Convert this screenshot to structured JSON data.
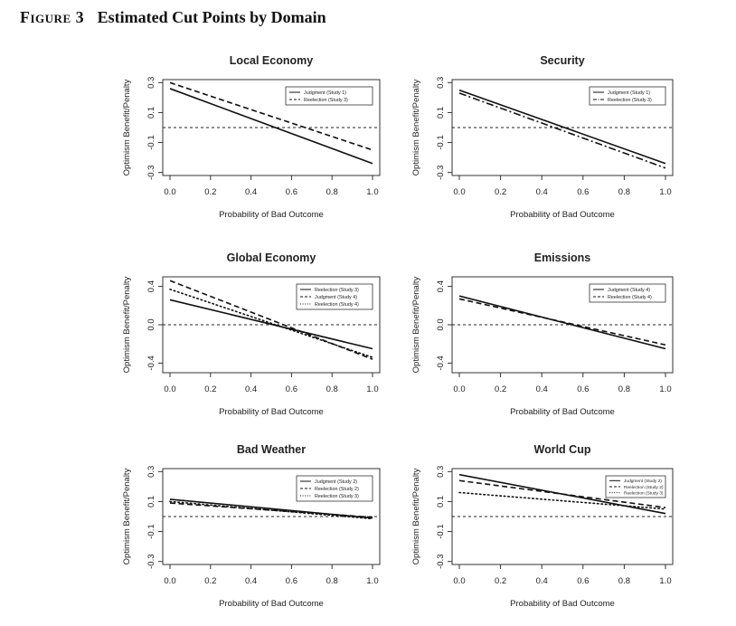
{
  "figure": {
    "label": "Figure 3",
    "caption": "Estimated Cut Points by Domain"
  },
  "chart_data": [
    {
      "type": "line",
      "title": "Local Economy",
      "xlabel": "Probability of Bad Outcome",
      "ylabel": "Optimism Benefit/Penalty",
      "xlim": [
        0,
        1
      ],
      "ylim": [
        -0.32,
        0.32
      ],
      "xticks": [
        0.0,
        0.2,
        0.4,
        0.6,
        0.8,
        1.0
      ],
      "yticks": [
        -0.3,
        -0.1,
        0.1,
        0.3
      ],
      "xtick_labels": [
        "0.0",
        "0.2",
        "0.4",
        "0.6",
        "0.8",
        "1.0"
      ],
      "ytick_labels": [
        "-0.3",
        "-0.1",
        "0.1",
        "0.3"
      ],
      "reference_y": 0,
      "series": [
        {
          "name": "Judgment (Study 1)",
          "style": "solid",
          "x": [
            0,
            1
          ],
          "y": [
            0.26,
            -0.24
          ]
        },
        {
          "name": "Reelection (Study 3)",
          "style": "dashed",
          "x": [
            0,
            1
          ],
          "y": [
            0.3,
            -0.15
          ]
        }
      ]
    },
    {
      "type": "line",
      "title": "Security",
      "xlabel": "Probability of Bad Outcome",
      "ylabel": "Optimism Benefit/Penalty",
      "xlim": [
        0,
        1
      ],
      "ylim": [
        -0.32,
        0.32
      ],
      "xticks": [
        0.0,
        0.2,
        0.4,
        0.6,
        0.8,
        1.0
      ],
      "yticks": [
        -0.3,
        -0.1,
        0.1,
        0.3
      ],
      "xtick_labels": [
        "0.0",
        "0.2",
        "0.4",
        "0.6",
        "0.8",
        "1.0"
      ],
      "ytick_labels": [
        "-0.3",
        "-0.1",
        "0.1",
        "0.3"
      ],
      "reference_y": 0,
      "series": [
        {
          "name": "Judgment (Study 1)",
          "style": "solid",
          "x": [
            0,
            1
          ],
          "y": [
            0.25,
            -0.24
          ]
        },
        {
          "name": "Reelection (Study 3)",
          "style": "dashdot",
          "x": [
            0,
            1
          ],
          "y": [
            0.23,
            -0.27
          ]
        }
      ]
    },
    {
      "type": "line",
      "title": "Global Economy",
      "xlabel": "Probability of Bad Outcome",
      "ylabel": "Optimism Benefit/Penalty",
      "xlim": [
        0,
        1
      ],
      "ylim": [
        -0.5,
        0.5
      ],
      "xticks": [
        0.0,
        0.2,
        0.4,
        0.6,
        0.8,
        1.0
      ],
      "yticks": [
        -0.4,
        0.0,
        0.4
      ],
      "xtick_labels": [
        "0.0",
        "0.2",
        "0.4",
        "0.6",
        "0.8",
        "1.0"
      ],
      "ytick_labels": [
        "-0.4",
        "0.0",
        "0.4"
      ],
      "reference_y": 0,
      "series": [
        {
          "name": "Reelection (Study 3)",
          "style": "solid",
          "x": [
            0,
            1
          ],
          "y": [
            0.26,
            -0.25
          ]
        },
        {
          "name": "Judgment (Study 4)",
          "style": "dashed",
          "x": [
            0,
            1
          ],
          "y": [
            0.46,
            -0.36
          ]
        },
        {
          "name": "Reelection (Study 4)",
          "style": "dotted",
          "x": [
            0,
            1
          ],
          "y": [
            0.37,
            -0.34
          ]
        }
      ]
    },
    {
      "type": "line",
      "title": "Emissions",
      "xlabel": "Probability of Bad Outcome",
      "ylabel": "Optimism Benefit/Penalty",
      "xlim": [
        0,
        1
      ],
      "ylim": [
        -0.5,
        0.5
      ],
      "xticks": [
        0.0,
        0.2,
        0.4,
        0.6,
        0.8,
        1.0
      ],
      "yticks": [
        -0.4,
        0.0,
        0.4
      ],
      "xtick_labels": [
        "0.0",
        "0.2",
        "0.4",
        "0.6",
        "0.8",
        "1.0"
      ],
      "ytick_labels": [
        "-0.4",
        "0.0",
        "0.4"
      ],
      "reference_y": 0,
      "series": [
        {
          "name": "Judgment (Study 4)",
          "style": "solid",
          "x": [
            0,
            1
          ],
          "y": [
            0.3,
            -0.25
          ]
        },
        {
          "name": "Reelection (Study 4)",
          "style": "dashed",
          "x": [
            0,
            1
          ],
          "y": [
            0.27,
            -0.21
          ]
        }
      ]
    },
    {
      "type": "line",
      "title": "Bad Weather",
      "xlabel": "Probability of Bad Outcome",
      "ylabel": "Optimism Benefit/Penalty",
      "xlim": [
        0,
        1
      ],
      "ylim": [
        -0.32,
        0.32
      ],
      "xticks": [
        0.0,
        0.2,
        0.4,
        0.6,
        0.8,
        1.0
      ],
      "yticks": [
        -0.3,
        -0.1,
        0.1,
        0.3
      ],
      "xtick_labels": [
        "0.0",
        "0.2",
        "0.4",
        "0.6",
        "0.8",
        "1.0"
      ],
      "ytick_labels": [
        "-0.3",
        "-0.1",
        "0.1",
        "0.3"
      ],
      "reference_y": 0,
      "series": [
        {
          "name": "Judgment (Study 2)",
          "style": "solid",
          "x": [
            0,
            1
          ],
          "y": [
            0.115,
            -0.01
          ]
        },
        {
          "name": "Reelection (Study 2)",
          "style": "dashed",
          "x": [
            0,
            1
          ],
          "y": [
            0.09,
            -0.005
          ]
        },
        {
          "name": "Reelection (Study 3)",
          "style": "dotted",
          "x": [
            0,
            1
          ],
          "y": [
            0.1,
            -0.015
          ]
        }
      ]
    },
    {
      "type": "line",
      "title": "World Cup",
      "xlabel": "Probability of Bad Outcome",
      "ylabel": "Optimism Benefit/Penalty",
      "xlim": [
        0,
        1
      ],
      "ylim": [
        -0.32,
        0.32
      ],
      "xticks": [
        0.0,
        0.2,
        0.4,
        0.6,
        0.8,
        1.0
      ],
      "yticks": [
        -0.3,
        -0.1,
        0.1,
        0.3
      ],
      "xtick_labels": [
        "0.0",
        "0.2",
        "0.4",
        "0.6",
        "0.8",
        "1.0"
      ],
      "ytick_labels": [
        "-0.3",
        "-0.1",
        "0.1",
        "0.3"
      ],
      "reference_y": 0,
      "series": [
        {
          "name": "Judgment (Study 2)",
          "style": "solid",
          "x": [
            0,
            1
          ],
          "y": [
            0.28,
            0.02
          ]
        },
        {
          "name": "Reelection (Study 2)",
          "style": "dashed",
          "x": [
            0,
            1
          ],
          "y": [
            0.24,
            0.06
          ]
        },
        {
          "name": "Reelection (Study 3)",
          "style": "dotted",
          "x": [
            0,
            1
          ],
          "y": [
            0.16,
            0.05
          ]
        }
      ]
    }
  ]
}
